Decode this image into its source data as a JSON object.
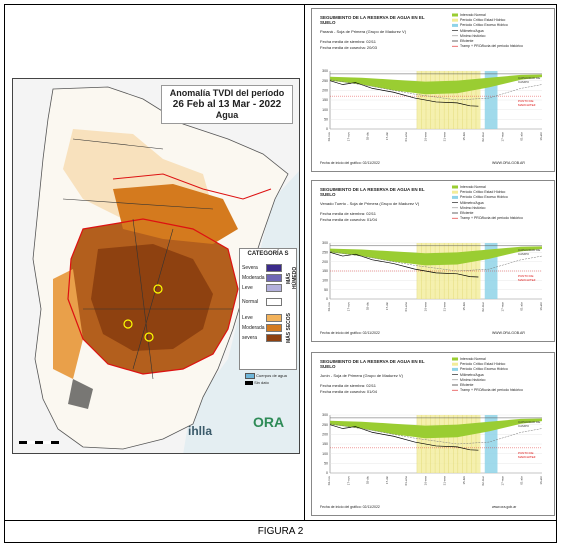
{
  "map": {
    "title_line1": "Anomalía TVDI del período",
    "title_line2": "26 Feb al 13 Mar - 2022",
    "title_line3": "Agua",
    "legend": {
      "title": "CATEGORÍA S",
      "wet_side": "MÁS HÚMEDO",
      "dry_side": "MÁS SECOS",
      "items": [
        {
          "label": "Severa",
          "color": "#3b2a8a"
        },
        {
          "label": "Moderada",
          "color": "#6f67b5"
        },
        {
          "label": "Leve",
          "color": "#b3b0dc"
        },
        {
          "label": "Normal",
          "color": "#ffffff"
        },
        {
          "label": "Leve",
          "color": "#f2b25b"
        },
        {
          "label": "Moderada",
          "color": "#d47a1e"
        },
        {
          "label": "severa",
          "color": "#8e4110"
        }
      ],
      "water_label": "Cuerpos de agua",
      "nodata_label": "Sin dato"
    },
    "logos": {
      "left": "ihlla",
      "right": "ORA"
    }
  },
  "charts": [
    {
      "title": "SEGUIMIENTO DE LA RESERVA DE AGUA EN EL SUELO",
      "location_line": "Paraná  -  Soja de Primera (Grupo de Madurez V)",
      "sowing": "Fecha media de siembra: 02/11",
      "harvest": "Fecha media de cosecha: 20/03",
      "start_note": "Fecha de inicio del gráfico:   02/11/2022",
      "site": "WWW.ORA.GOB.AR",
      "legend": [
        "Intervalo Normal",
        "Período Crítico Estad Hídrico",
        "Período Crítico Exceso Hídrico",
        "Milímetro/Agua",
        "Mínimo histórico",
        "Eficiente",
        "Tramp + PRO/lluvia del período histórico"
      ],
      "capacity_label": "CAPACIDAD DE CAMPO",
      "wilting_label": "PUNTO DE MARCHITEZ",
      "yticks": [
        "300",
        "250",
        "200",
        "150",
        "100",
        "50",
        "0"
      ],
      "xticks": [
        "02-nov",
        "17-nov",
        "02-dic",
        "17-dic",
        "01-ene",
        "16-ene",
        "31-ene",
        "15-feb",
        "02-mar",
        "17-mar",
        "01-abr",
        "16-abr"
      ]
    },
    {
      "title": "SEGUIMIENTO DE LA RESERVA DE AGUA EN EL SUELO",
      "location_line": "Venado Tuerto  -  Soja de Primera (Grupo de Madurez V)",
      "sowing": "Fecha media de siembra: 02/11",
      "harvest": "Fecha media de cosecha: 01/04",
      "start_note": "Fecha de inicio del gráfico:   02/11/2022",
      "site": "WWW.ORA.GOB.AR",
      "legend": [
        "Intervalo Normal",
        "Período Crítico Estad Hídrico",
        "Período Crítico Exceso Hídrico",
        "Milímetro/Agua",
        "Mínimo histórico",
        "Eficiente",
        "Tramp + PRO/lluvia del período histórico"
      ],
      "capacity_label": "CAPACIDAD DE CAMPO",
      "wilting_label": "PUNTO DE MARCHITEZ",
      "yticks": [
        "300",
        "250",
        "200",
        "150",
        "100",
        "50",
        "0"
      ],
      "xticks": [
        "02-nov",
        "17-nov",
        "02-dic",
        "17-dic",
        "01-ene",
        "16-ene",
        "31-ene",
        "15-feb",
        "02-mar",
        "17-mar",
        "01-abr",
        "16-abr"
      ]
    },
    {
      "title": "SEGUIMIENTO DE LA RESERVA DE AGUA EN EL SUELO",
      "location_line": "Junín  -  Soja de Primera (Grupo de Madurez V)",
      "sowing": "Fecha media de siembra: 02/11",
      "harvest": "Fecha media de cosecha: 01/04",
      "start_note": "Fecha de inicio del gráfico:   02/11/2022",
      "site": "www.ora.gob.ar",
      "legend": [
        "Intervalo Normal",
        "Período Crítico Estad Hídrico",
        "Período Crítico Exceso Hídrico",
        "Milímetro/Agua",
        "Mínimo histórico",
        "Eficiente",
        "Tramp + PRO/lluvia del período histórico"
      ],
      "capacity_label": "CAPACIDAD DE CAMPO",
      "wilting_label": "PUNTO DE MARCHITEZ",
      "yticks": [
        "300",
        "250",
        "200",
        "150",
        "100",
        "50",
        "0"
      ],
      "xticks": [
        "02-nov",
        "17-nov",
        "02-dic",
        "17-dic",
        "01-ene",
        "16-ene",
        "31-ene",
        "15-feb",
        "02-mar",
        "17-mar",
        "01-abr",
        "16-abr"
      ]
    }
  ],
  "caption": "FIGURA 2"
}
